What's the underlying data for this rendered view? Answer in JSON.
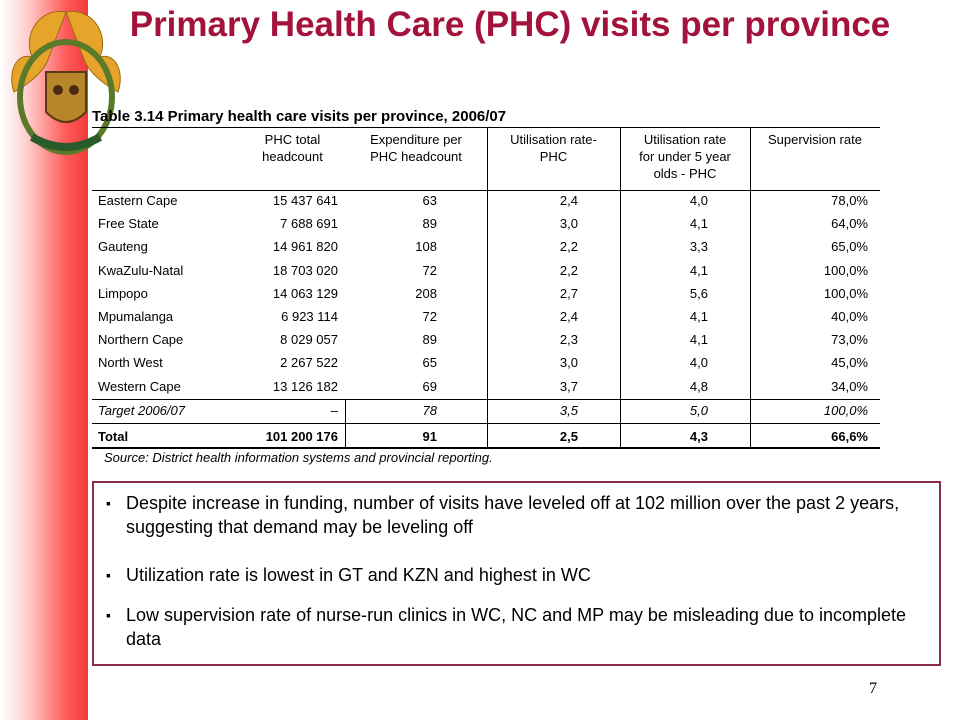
{
  "title": "Primary Health Care (PHC) visits per province",
  "table": {
    "caption": "Table 3.14  Primary health care visits per province, 2006/07",
    "headers": [
      "",
      "PHC total\nheadcount",
      "Expenditure per\nPHC headcount",
      "Utilisation rate-\nPHC",
      "Utilisation rate\nfor under 5 year\nolds - PHC",
      "Supervision rate"
    ],
    "rows": [
      [
        "Eastern Cape",
        "15 437 641",
        "63",
        "2,4",
        "4,0",
        "78,0%"
      ],
      [
        "Free State",
        "7 688 691",
        "89",
        "3,0",
        "4,1",
        "64,0%"
      ],
      [
        "Gauteng",
        "14 961 820",
        "108",
        "2,2",
        "3,3",
        "65,0%"
      ],
      [
        "KwaZulu-Natal",
        "18 703 020",
        "72",
        "2,2",
        "4,1",
        "100,0%"
      ],
      [
        "Limpopo",
        "14 063 129",
        "208",
        "2,7",
        "5,6",
        "100,0%"
      ],
      [
        "Mpumalanga",
        "6 923 114",
        "72",
        "2,4",
        "4,1",
        "40,0%"
      ],
      [
        "Northern Cape",
        "8 029 057",
        "89",
        "2,3",
        "4,1",
        "73,0%"
      ],
      [
        "North West",
        "2 267 522",
        "65",
        "3,0",
        "4,0",
        "45,0%"
      ],
      [
        "Western Cape",
        "13 126 182",
        "69",
        "3,7",
        "4,8",
        "34,0%"
      ]
    ],
    "target": [
      "Target 2006/07",
      "–",
      "78",
      "3,5",
      "5,0",
      "100,0%"
    ],
    "total": [
      "Total",
      "101 200 176",
      "91",
      "2,5",
      "4,3",
      "66,6%"
    ],
    "source": "Source: District health information systems and provincial reporting."
  },
  "bullets": [
    "Despite increase in funding, number of visits have leveled off at 102 million over the past 2 years, suggesting that demand may be leveling off",
    "Utilization rate is lowest in GT and KZN and highest in WC",
    "Low supervision rate of nurse-run clinics in WC, NC and MP may be misleading due to incomplete data"
  ],
  "page_number": "7"
}
